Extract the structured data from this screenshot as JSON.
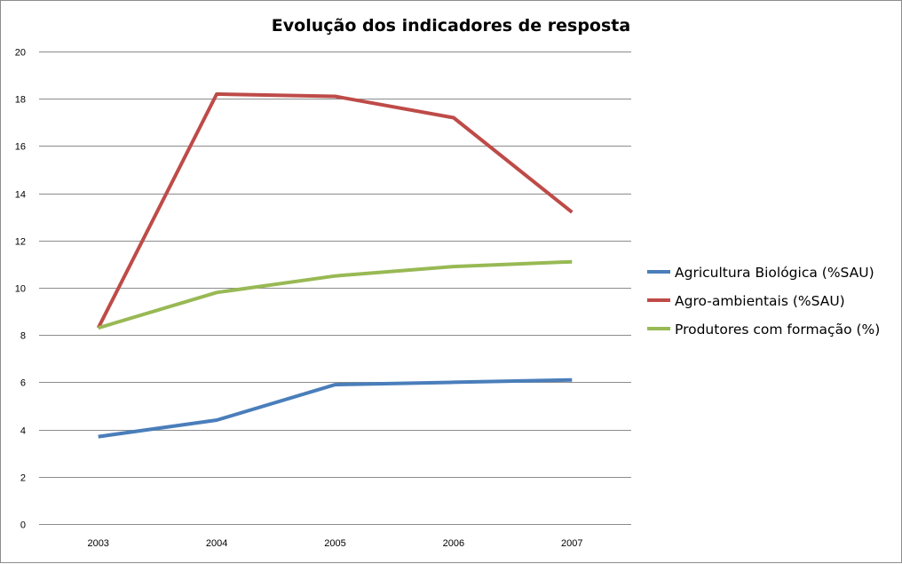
{
  "chart_data": {
    "type": "line",
    "title": "Evolução dos indicadores de resposta",
    "xlabel": "",
    "ylabel": "",
    "categories": [
      "2003",
      "2004",
      "2005",
      "2006",
      "2007"
    ],
    "ylim": [
      0,
      20
    ],
    "yticks": [
      0,
      2,
      4,
      6,
      8,
      10,
      12,
      14,
      16,
      18,
      20
    ],
    "grid": true,
    "legend_position": "right",
    "series": [
      {
        "name": "Agricultura Biológica (%SAU)",
        "color": "#4a7ebb",
        "values": [
          3.7,
          4.4,
          5.9,
          6.0,
          6.1
        ]
      },
      {
        "name": "Agro-ambientais (%SAU)",
        "color": "#be4b48",
        "values": [
          8.3,
          18.2,
          18.1,
          17.2,
          13.2
        ]
      },
      {
        "name": "Produtores com formação (%)",
        "color": "#98b954",
        "values": [
          8.3,
          9.8,
          10.5,
          10.9,
          11.1
        ]
      }
    ]
  }
}
